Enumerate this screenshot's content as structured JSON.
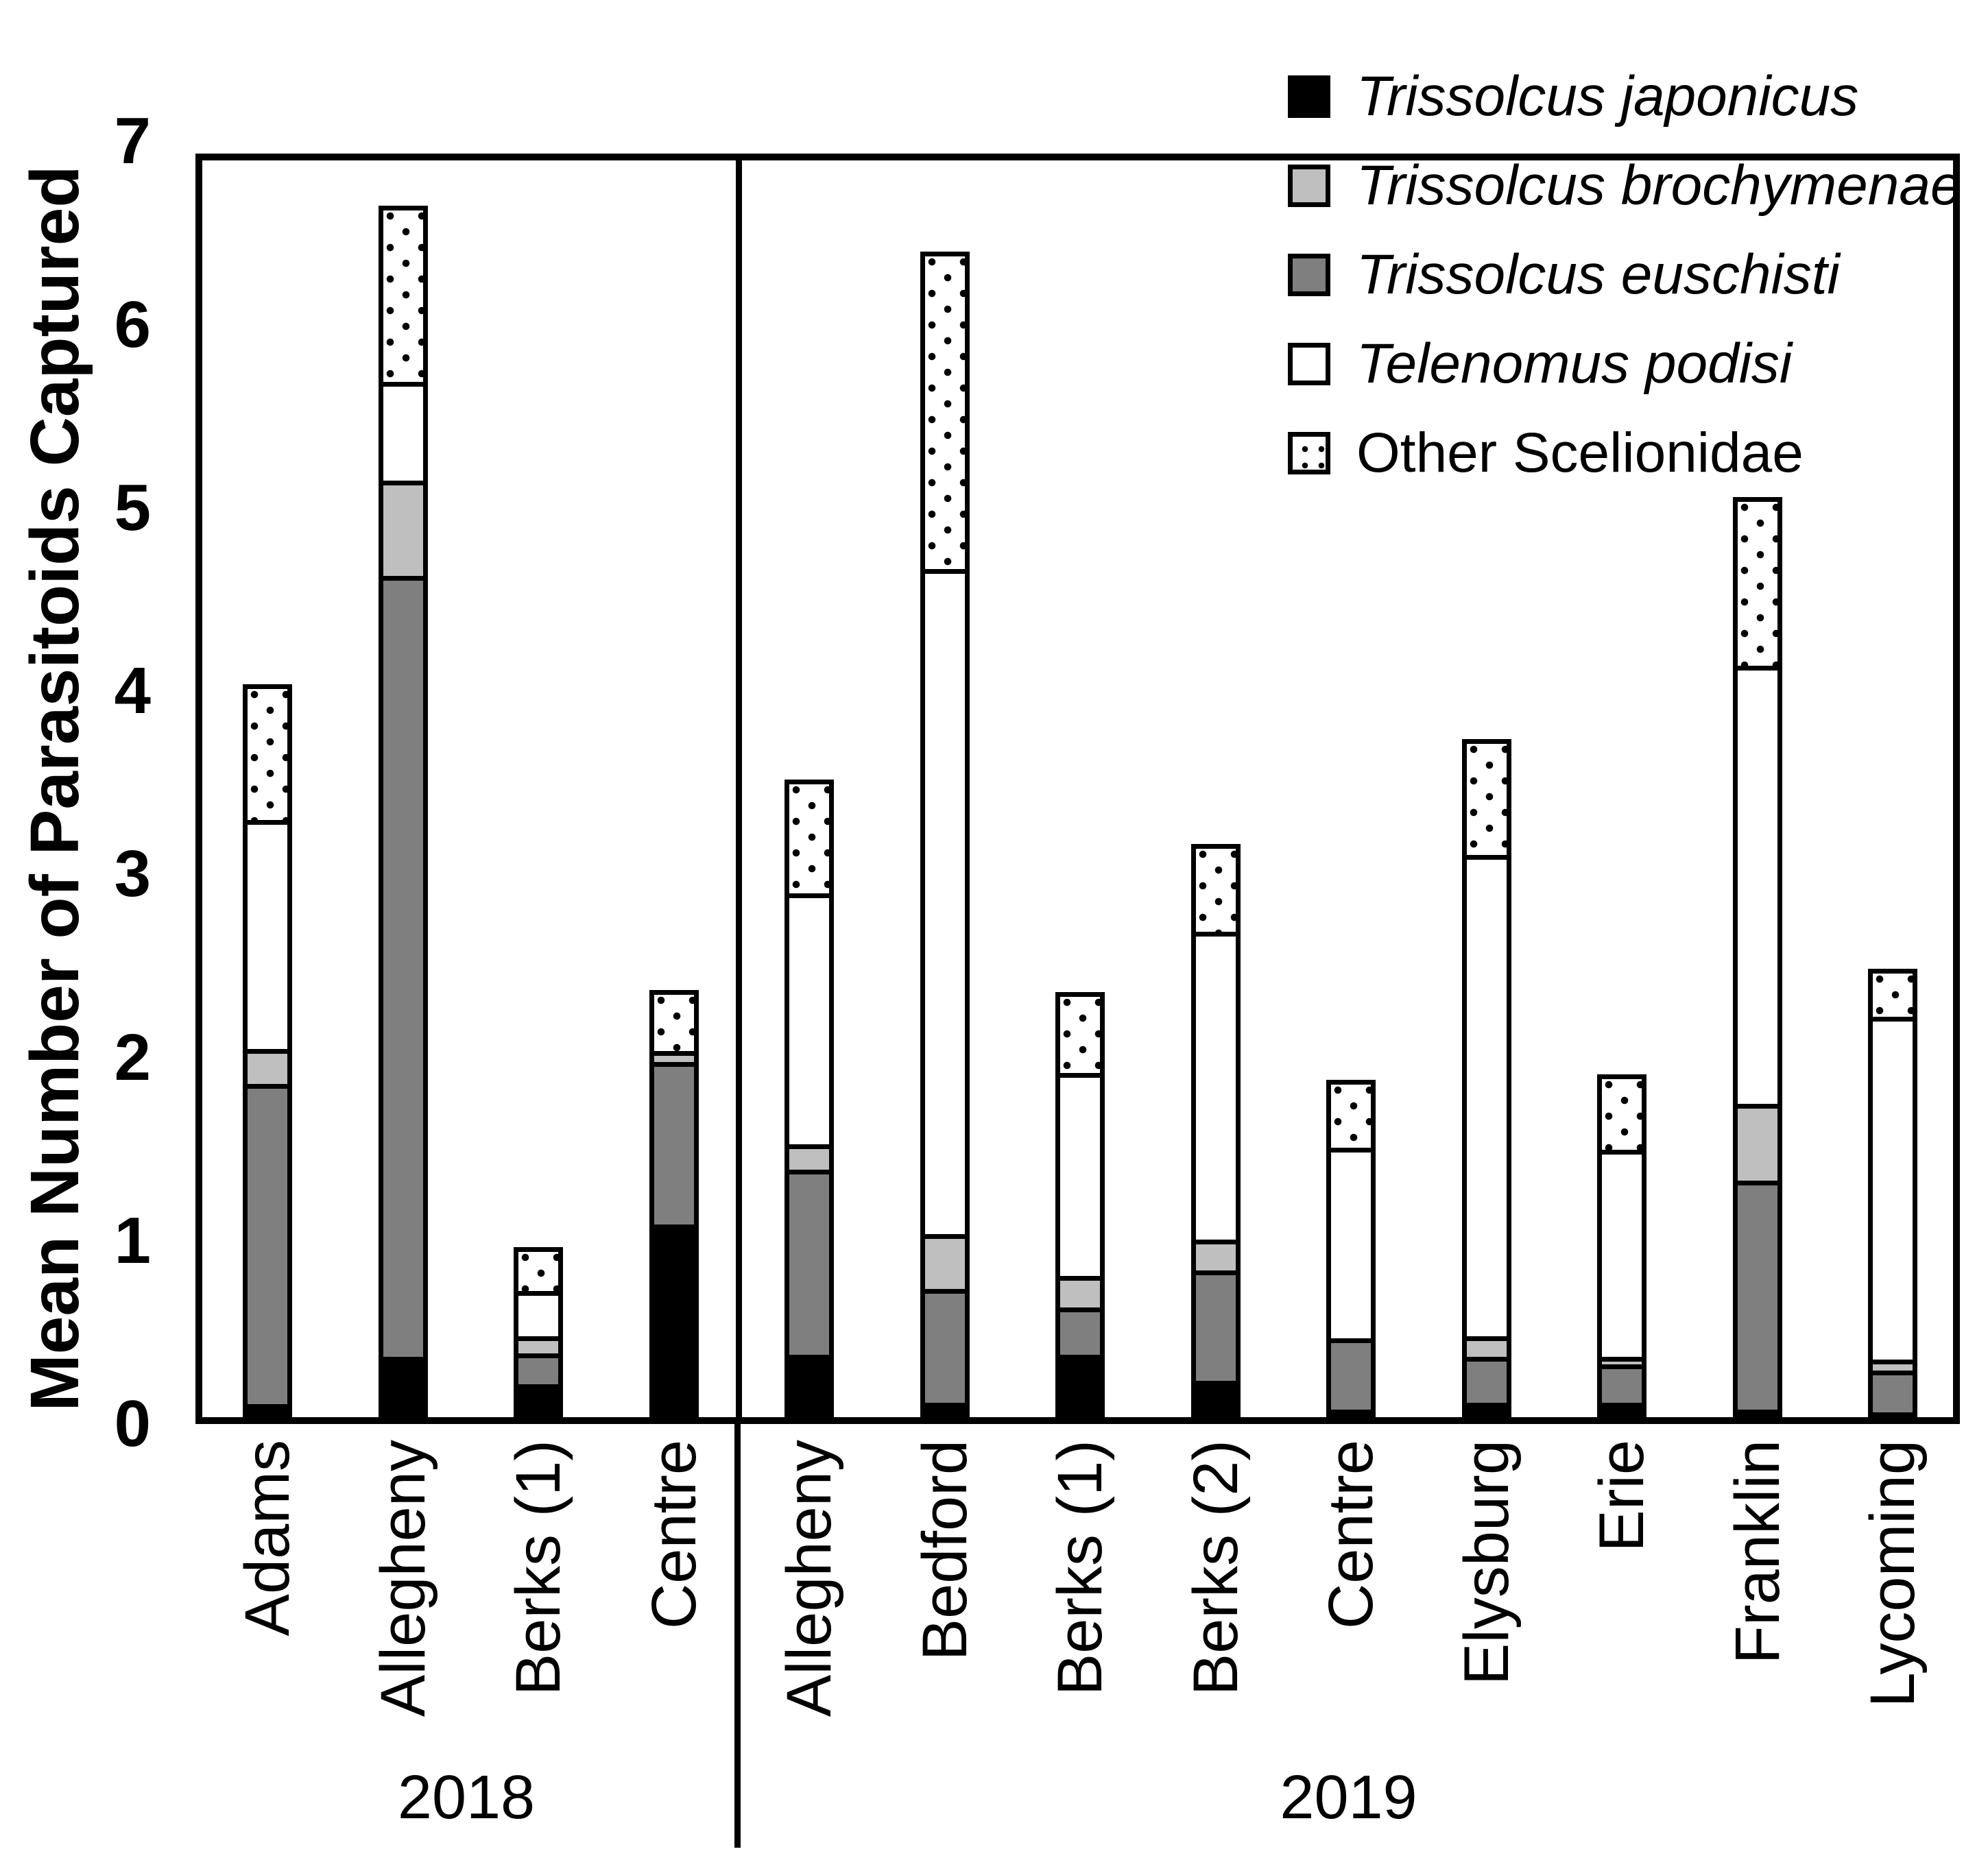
{
  "chart_data": {
    "type": "bar",
    "stacked": true,
    "title": "",
    "y_axis": {
      "label": "Mean Number of Parasitoids Captured",
      "min": 0,
      "max": 7,
      "ticks": [
        0,
        1,
        2,
        3,
        4,
        5,
        6,
        7
      ]
    },
    "x_axis": {
      "groups": [
        {
          "label": "2018",
          "categories": [
            "Adams",
            "Allegheny",
            "Berks (1)",
            "Centre"
          ]
        },
        {
          "label": "2019",
          "categories": [
            "Allegheny",
            "Bedford",
            "Berks (1)",
            "Berks (2)",
            "Centre",
            "Elysburg",
            "Erie",
            "Franklin",
            "Lycoming"
          ]
        }
      ]
    },
    "grid": false,
    "legend_position": "top-right-inside",
    "series": [
      {
        "name": "Trissolcus japonicus",
        "italic": true,
        "style": "black",
        "color": "#000000",
        "values": [
          0.07,
          0.33,
          0.18,
          1.05,
          0.34,
          0.08,
          0.34,
          0.2,
          0.04,
          0.08,
          0.08,
          0.04,
          0.02
        ]
      },
      {
        "name": "Trissolcus brochymenae",
        "italic": true,
        "style": "lightgray",
        "color": "#bfbfbf",
        "values": [
          0.19,
          0.52,
          0.09,
          0.06,
          0.14,
          0.3,
          0.17,
          0.17,
          0.0,
          0.11,
          0.04,
          0.42,
          0.06
        ]
      },
      {
        "name": "Trissolcus euschisti",
        "italic": true,
        "style": "darkgray",
        "color": "#7f7f7f",
        "values": [
          1.75,
          4.26,
          0.17,
          0.89,
          1.01,
          0.62,
          0.26,
          0.6,
          0.39,
          0.25,
          0.21,
          1.25,
          0.23
        ]
      },
      {
        "name": "Telenomus podisi",
        "italic": true,
        "style": "white",
        "color": "#ffffff",
        "values": [
          1.25,
          0.54,
          0.25,
          0.0,
          1.37,
          3.63,
          1.11,
          1.68,
          1.04,
          2.63,
          1.13,
          2.39,
          1.87
        ]
      },
      {
        "name": "Other Scelionidae",
        "italic": false,
        "style": "dotted",
        "color": "#ffffff",
        "values": [
          0.74,
          0.96,
          0.24,
          0.33,
          0.62,
          1.73,
          0.44,
          0.48,
          0.37,
          0.63,
          0.41,
          0.92,
          0.26
        ]
      }
    ],
    "stack_order_bottom_to_top": [
      "Trissolcus japonicus",
      "Trissolcus euschisti",
      "Trissolcus brochymenae",
      "Telenomus podisi",
      "Other Scelionidae"
    ],
    "bar_totals": [
      4.0,
      6.61,
      0.93,
      2.33,
      3.48,
      6.36,
      2.32,
      3.13,
      1.84,
      3.7,
      1.87,
      5.02,
      2.44
    ]
  }
}
